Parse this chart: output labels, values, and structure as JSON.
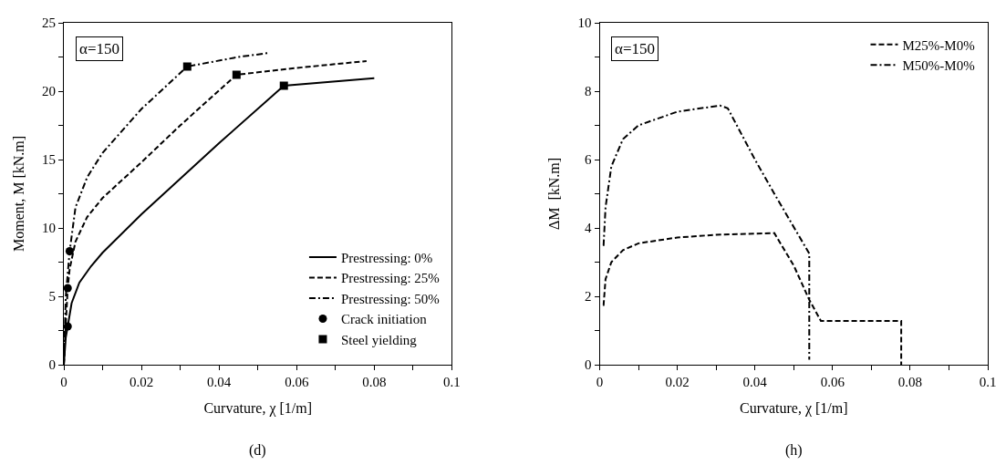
{
  "chart_data": [
    {
      "type": "line",
      "xlabel": "Curvature, χ [1/m]",
      "ylabel": "Moment, M [kN.m]",
      "xlim": [
        0,
        0.1
      ],
      "ylim": [
        0,
        25
      ],
      "xticks": [
        0,
        {
          "value": 0.01,
          "label": null
        },
        0.02,
        {
          "value": 0.03,
          "label": null
        },
        0.04,
        {
          "value": 0.05,
          "label": null
        },
        0.06,
        {
          "value": 0.07,
          "label": null
        },
        0.08,
        {
          "value": 0.09,
          "label": null
        },
        0.1
      ],
      "yticks": [
        0,
        {
          "value": 2.5,
          "label": null
        },
        5,
        {
          "value": 7.5,
          "label": null
        },
        10,
        {
          "value": 12.5,
          "label": null
        },
        15,
        {
          "value": 17.5,
          "label": null
        },
        20,
        {
          "value": 22.5,
          "label": null
        },
        25
      ],
      "legend": "bottom right",
      "annotations": [
        "α=150",
        "(d)"
      ],
      "series": [
        {
          "name": "Prestressing: 0%",
          "color": "#000000",
          "line_style": "solid",
          "x": [
            0,
            0.0005,
            0.001,
            0.002,
            0.004,
            0.007,
            0.01,
            0.02,
            0.03,
            0.04,
            0.0567,
            0.08
          ],
          "values": [
            0,
            2,
            2.8,
            4.5,
            6,
            7.2,
            8.2,
            11,
            13.6,
            16.2,
            20.4,
            20.95
          ]
        },
        {
          "name": "Prestressing: 25%",
          "color": "#000000",
          "line_style": "dashed",
          "x": [
            0,
            0.0005,
            0.001,
            0.0015,
            0.003,
            0.006,
            0.01,
            0.02,
            0.03,
            0.0445,
            0.06,
            0.078
          ],
          "values": [
            0,
            3,
            5.6,
            7,
            9,
            10.8,
            12.2,
            14.8,
            17.5,
            21.2,
            21.7,
            22.2
          ]
        },
        {
          "name": "Prestressing: 50%",
          "color": "#000000",
          "line_style": "dashdot",
          "x": [
            0,
            0.0005,
            0.0015,
            0.003,
            0.006,
            0.01,
            0.02,
            0.0318,
            0.045,
            0.053
          ],
          "values": [
            0,
            5,
            8.3,
            11.5,
            13.7,
            15.5,
            18.7,
            21.8,
            22.5,
            22.8
          ]
        },
        {
          "name": "Crack initiation",
          "type": "scatter",
          "marker": "circle",
          "color": "#000000",
          "x": [
            0.001,
            0.001,
            0.0015
          ],
          "values": [
            2.8,
            5.6,
            8.3
          ]
        },
        {
          "name": "Steel yielding",
          "type": "scatter",
          "marker": "square",
          "color": "#000000",
          "x": [
            0.0567,
            0.0445,
            0.0318
          ],
          "values": [
            20.4,
            21.2,
            21.8
          ]
        }
      ]
    },
    {
      "type": "line",
      "xlabel": "Curvature, χ [1/m]",
      "ylabel": "ΔM  [kN.m]",
      "xlim": [
        0,
        0.1
      ],
      "ylim": [
        0,
        10
      ],
      "xticks": [
        0,
        {
          "value": 0.01,
          "label": null
        },
        0.02,
        {
          "value": 0.03,
          "label": null
        },
        0.04,
        {
          "value": 0.05,
          "label": null
        },
        0.06,
        {
          "value": 0.07,
          "label": null
        },
        0.08,
        {
          "value": 0.09,
          "label": null
        },
        0.1
      ],
      "yticks": [
        0,
        {
          "value": 1,
          "label": null
        },
        2,
        {
          "value": 3,
          "label": null
        },
        4,
        {
          "value": 5,
          "label": null
        },
        6,
        {
          "value": 7,
          "label": null
        },
        8,
        {
          "value": 9,
          "label": null
        },
        10
      ],
      "legend": "top right",
      "annotations": [
        "α=150",
        "(h)"
      ],
      "series": [
        {
          "name": "M25%-M0%",
          "color": "#000000",
          "line_style": "dashed",
          "x": [
            0.0008,
            0.001,
            0.0015,
            0.003,
            0.006,
            0.01,
            0.02,
            0.03,
            0.045,
            0.05,
            0.054,
            0.057,
            0.0777,
            0.0777
          ],
          "values": [
            1.75,
            1.75,
            2.5,
            3.0,
            3.35,
            3.55,
            3.72,
            3.8,
            3.85,
            2.9,
            1.9,
            1.28,
            1.28,
            0
          ]
        },
        {
          "name": "M50%-M0%",
          "color": "#000000",
          "line_style": "dashdot",
          "x": [
            0.0008,
            0.001,
            0.0015,
            0.003,
            0.006,
            0.01,
            0.02,
            0.031,
            0.033,
            0.04,
            0.045,
            0.054,
            0.054
          ],
          "values": [
            3.5,
            3.5,
            4.6,
            5.8,
            6.6,
            7.0,
            7.4,
            7.58,
            7.5,
            6,
            5,
            3.25,
            0.15
          ]
        }
      ]
    }
  ]
}
